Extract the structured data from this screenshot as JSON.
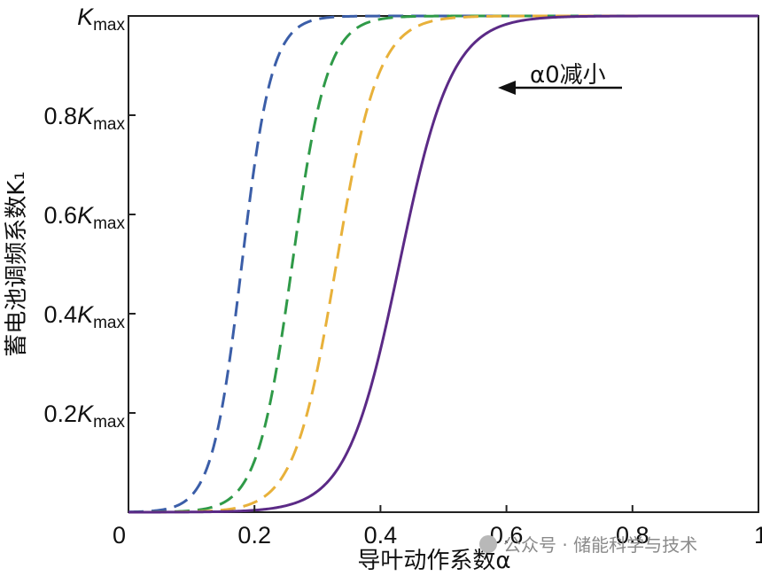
{
  "chart_data": {
    "type": "line",
    "xlabel": "导叶动作系数α",
    "ylabel": "蓄电池调频系数K₁",
    "xlim": [
      0,
      1
    ],
    "ylim": [
      0,
      1
    ],
    "x_ticks": [
      "0",
      "0.2",
      "0.4",
      "0.6",
      "0.8",
      "1"
    ],
    "x_tick_values": [
      0,
      0.2,
      0.4,
      0.6,
      0.8,
      1
    ],
    "y_ticks": [
      "0.2Kmax",
      "0.4Kmax",
      "0.6Kmax",
      "0.8Kmax",
      "Kmax"
    ],
    "y_tick_values": [
      0.2,
      0.4,
      0.6,
      0.8,
      1
    ],
    "annotation": "α0减小",
    "series": [
      {
        "color": "#3b5ea8",
        "style": "dashed",
        "midpoint": 0.18,
        "steepness": 42
      },
      {
        "color": "#2f9a48",
        "style": "dashed",
        "midpoint": 0.26,
        "steepness": 36
      },
      {
        "color": "#e8b13a",
        "style": "dashed",
        "midpoint": 0.33,
        "steepness": 30
      },
      {
        "color": "#5b2a86",
        "style": "solid",
        "midpoint": 0.43,
        "steepness": 24
      }
    ]
  },
  "watermark": "公众号 · 储能科学与技术"
}
